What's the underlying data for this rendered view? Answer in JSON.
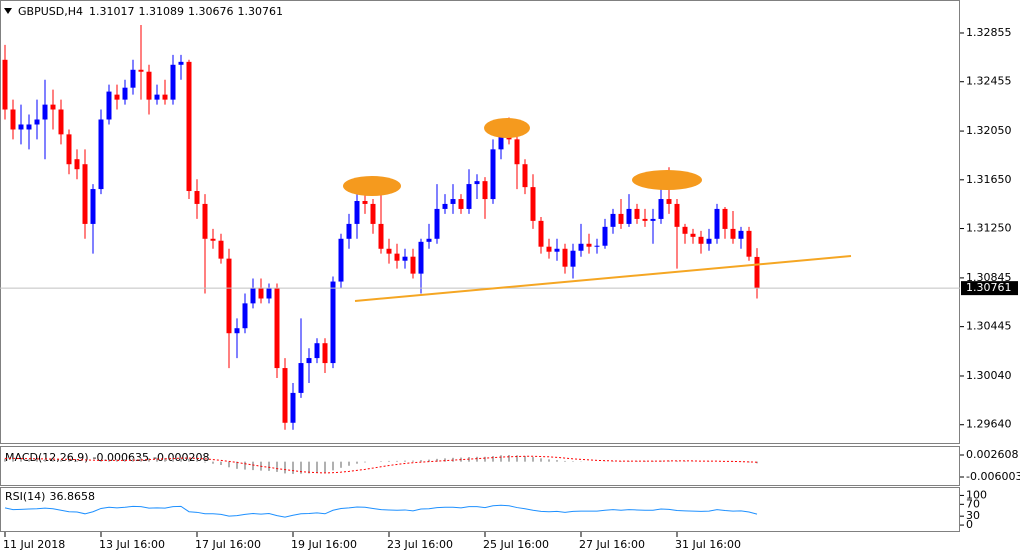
{
  "chart_data": [
    {
      "type": "candlestick",
      "title": "GBPUSD,H4",
      "categories": [
        "11 Jul 2018",
        null,
        null,
        null,
        null,
        null,
        null,
        null,
        null,
        null,
        null,
        null,
        "13 Jul 16:00",
        null,
        null,
        null,
        null,
        null,
        null,
        null,
        null,
        null,
        null,
        null,
        "17 Jul 16:00",
        null,
        null,
        null,
        null,
        null,
        null,
        null,
        null,
        null,
        null,
        null,
        "19 Jul 16:00",
        null,
        null,
        null,
        null,
        null,
        null,
        null,
        null,
        null,
        null,
        null,
        "23 Jul 16:00",
        null,
        null,
        null,
        null,
        null,
        null,
        null,
        null,
        null,
        null,
        null,
        "25 Jul 16:00",
        null,
        null,
        null,
        null,
        null,
        null,
        null,
        null,
        null,
        null,
        null,
        "27 Jul 16:00",
        null,
        null,
        null,
        null,
        null,
        null,
        null,
        null,
        null,
        null,
        null,
        "31 Jul 16:00",
        null,
        null,
        null,
        null,
        null,
        null,
        null,
        null,
        null,
        null
      ],
      "open": [
        1.32635,
        1.32227,
        1.32063,
        1.32063,
        1.32104,
        1.32145,
        1.32267,
        1.32227,
        1.32023,
        1.31819,
        1.31778,
        1.31288,
        1.31574,
        1.32145,
        1.32349,
        1.32308,
        1.32406,
        1.32553,
        1.32537,
        1.32308,
        1.32349,
        1.32308,
        1.32594,
        1.32618,
        1.31558,
        1.31452,
        1.31166,
        1.3115,
        1.31003,
        1.30391,
        1.30432,
        1.30636,
        1.30758,
        1.30676,
        1.30758,
        1.30105,
        1.29656,
        1.29901,
        1.30146,
        1.30187,
        1.30309,
        1.30146,
        1.30815,
        1.31166,
        1.31288,
        1.31476,
        1.31452,
        1.31288,
        1.31084,
        1.31044,
        1.30986,
        1.31019,
        1.3088,
        1.31141,
        1.31166,
        1.31411,
        1.31452,
        1.31492,
        1.31411,
        1.31615,
        1.31639,
        1.31492,
        1.319,
        1.32063,
        1.31982,
        1.31778,
        1.3159,
        1.31313,
        1.31101,
        1.3106,
        1.31084,
        1.30937,
        1.31068,
        1.31125,
        1.31101,
        1.31109,
        1.31264,
        1.3137,
        1.31288,
        1.31411,
        1.31329,
        1.31313,
        1.31329,
        1.31492,
        1.31452,
        1.31264,
        1.31207,
        1.31182,
        1.31125,
        1.31166,
        1.31411,
        1.31247,
        1.31166,
        1.31231,
        1.31017
      ],
      "high": [
        1.32757,
        1.32308,
        1.32267,
        1.32186,
        1.32308,
        1.32471,
        1.3239,
        1.32308,
        1.32063,
        1.319,
        1.319,
        1.31615,
        1.32227,
        1.32431,
        1.32431,
        1.32471,
        1.32635,
        1.3292,
        1.32594,
        1.32431,
        1.32471,
        1.32675,
        1.32675,
        1.32635,
        1.31655,
        1.31533,
        1.31247,
        1.31207,
        1.31084,
        1.30513,
        1.30717,
        1.3084,
        1.3084,
        1.30799,
        1.30799,
        1.30187,
        1.29982,
        1.30513,
        1.30268,
        1.3035,
        1.3035,
        1.30856,
        1.31207,
        1.3137,
        1.31533,
        1.31615,
        1.31492,
        1.31533,
        1.31166,
        1.31125,
        1.31084,
        1.31084,
        1.31166,
        1.31288,
        1.31615,
        1.31533,
        1.31615,
        1.31533,
        1.31737,
        1.31696,
        1.31672,
        1.31982,
        1.32145,
        1.32161,
        1.32023,
        1.31819,
        1.31696,
        1.31345,
        1.31166,
        1.31166,
        1.31125,
        1.31125,
        1.31288,
        1.31207,
        1.31166,
        1.31329,
        1.31411,
        1.31492,
        1.31533,
        1.31452,
        1.31411,
        1.31411,
        1.31639,
        1.31753,
        1.31492,
        1.31288,
        1.31247,
        1.31231,
        1.31247,
        1.31452,
        1.31427,
        1.31394,
        1.31264,
        1.31264,
        1.31089
      ],
      "low": [
        1.32145,
        1.31982,
        1.31941,
        1.319,
        1.31982,
        1.31819,
        1.32063,
        1.31941,
        1.31696,
        1.31655,
        1.31166,
        1.31044,
        1.31533,
        1.32104,
        1.32227,
        1.32267,
        1.32349,
        1.32308,
        1.32186,
        1.32267,
        1.32267,
        1.32267,
        1.32471,
        1.31492,
        1.31329,
        1.30717,
        1.31084,
        1.30962,
        1.30105,
        1.30187,
        1.30391,
        1.30595,
        1.30636,
        1.30636,
        1.30023,
        1.29599,
        1.29599,
        1.2986,
        1.29982,
        1.30146,
        1.30064,
        1.30105,
        1.30758,
        1.31084,
        1.31166,
        1.3137,
        1.31207,
        1.31044,
        1.30962,
        1.30921,
        1.30921,
        1.3084,
        1.30717,
        1.31084,
        1.31125,
        1.3137,
        1.3137,
        1.3137,
        1.3137,
        1.31492,
        1.31329,
        1.31452,
        1.31819,
        1.31941,
        1.31574,
        1.31533,
        1.31247,
        1.31044,
        1.31003,
        1.30986,
        1.3088,
        1.3084,
        1.31019,
        1.31044,
        1.31044,
        1.31084,
        1.31207,
        1.31247,
        1.31264,
        1.31288,
        1.31264,
        1.31125,
        1.31288,
        1.3137,
        1.30921,
        1.31125,
        1.31125,
        1.31044,
        1.31068,
        1.31125,
        1.31166,
        1.31125,
        1.31084,
        1.30986,
        1.30676
      ],
      "close": [
        1.32227,
        1.32063,
        1.32104,
        1.32104,
        1.32145,
        1.32267,
        1.32227,
        1.32023,
        1.31778,
        1.31737,
        1.31288,
        1.31574,
        1.32145,
        1.32374,
        1.32308,
        1.32406,
        1.32553,
        1.32537,
        1.32308,
        1.32349,
        1.32308,
        1.32594,
        1.32618,
        1.31558,
        1.31452,
        1.31166,
        1.3115,
        1.31003,
        1.30391,
        1.30432,
        1.30636,
        1.30758,
        1.30676,
        1.30758,
        1.30105,
        1.29656,
        1.29901,
        1.30146,
        1.30187,
        1.30309,
        1.30146,
        1.30815,
        1.31166,
        1.31288,
        1.31476,
        1.31452,
        1.31288,
        1.31084,
        1.31044,
        1.30986,
        1.31019,
        1.3088,
        1.31141,
        1.31166,
        1.31411,
        1.31452,
        1.31492,
        1.31411,
        1.31615,
        1.31639,
        1.31492,
        1.319,
        1.32063,
        1.31982,
        1.31778,
        1.3159,
        1.31313,
        1.31101,
        1.3106,
        1.31084,
        1.30937,
        1.31068,
        1.31125,
        1.31101,
        1.31109,
        1.31264,
        1.3137,
        1.31288,
        1.31411,
        1.31329,
        1.31313,
        1.31329,
        1.31492,
        1.31452,
        1.31264,
        1.31207,
        1.31182,
        1.31125,
        1.31166,
        1.31411,
        1.31247,
        1.31166,
        1.31231,
        1.31019,
        1.30761
      ],
      "up_color": "#0000ff",
      "down_color": "#ff0000",
      "ylim": [
        1.2949,
        1.3306
      ],
      "yticks": [
        1.32855,
        1.32455,
        {
          "value": 1.3205,
          "label": "1.32050"
        },
        {
          "value": 1.3165,
          "label": "1.31650"
        },
        {
          "value": 1.3125,
          "label": "1.31250"
        },
        1.30845,
        1.30445,
        {
          "value": 1.3004,
          "label": "1.30040"
        },
        {
          "value": 1.2964,
          "label": "1.29640"
        }
      ],
      "grid": false
    },
    {
      "type": "macd",
      "title": "MACD(12,26,9)",
      "series": [
        {
          "color": "#b0b0b0",
          "values": [
            0.0012,
            0.0011,
            0.001,
            0.0009,
            0.0009,
            0.0009,
            0.0008,
            0.0007,
            0.0005,
            0.0003,
            0.0,
            0.0,
            0.0003,
            0.0006,
            0.0008,
            0.001,
            0.0013,
            0.0014,
            0.0014,
            0.0014,
            0.0014,
            0.0015,
            0.0016,
            0.0011,
            0.0005,
            -0.0003,
            -0.0008,
            -0.0013,
            -0.0022,
            -0.0028,
            -0.0031,
            -0.0033,
            -0.0035,
            -0.0036,
            -0.004,
            -0.0046,
            -0.0048,
            -0.0047,
            -0.0046,
            -0.0044,
            -0.0042,
            -0.0034,
            -0.0024,
            -0.0016,
            -0.0008,
            -0.0003,
            0.0,
            0.0002,
            0.0003,
            0.0003,
            0.0004,
            0.0004,
            0.0006,
            0.0008,
            0.0011,
            0.0013,
            0.0015,
            0.0016,
            0.0018,
            0.0019,
            0.0019,
            0.0022,
            0.0025,
            0.0026,
            0.0025,
            0.0022,
            0.0018,
            0.0013,
            0.0009,
            0.0006,
            0.0003,
            0.0002,
            0.0001,
            0.0,
            0.0,
            0.0001,
            0.0002,
            0.0002,
            0.0003,
            0.0003,
            0.0003,
            0.0003,
            0.0004,
            0.0004,
            0.0003,
            0.0002,
            0.0001,
            0.0,
            -0.0001,
            0.0,
            0.0,
            -0.0001,
            -0.0001,
            -0.0003,
            -0.000635
          ]
        },
        {
          "color": "#ff0000",
          "values": [
            0.0013,
            0.0013,
            0.0012,
            0.0012,
            0.0011,
            0.0011,
            0.001,
            0.001,
            0.0009,
            0.0008,
            0.0007,
            0.0006,
            0.0005,
            0.0005,
            0.0005,
            0.0005,
            0.0006,
            0.0007,
            0.0008,
            0.001,
            0.0011,
            0.0012,
            0.0014,
            0.0014,
            0.0013,
            0.0011,
            0.0008,
            0.0005,
            0.0001,
            -0.0003,
            -0.0008,
            -0.0013,
            -0.0018,
            -0.0022,
            -0.0027,
            -0.0031,
            -0.0035,
            -0.0039,
            -0.0041,
            -0.0043,
            -0.0044,
            -0.0043,
            -0.0041,
            -0.0038,
            -0.0034,
            -0.003,
            -0.0025,
            -0.002,
            -0.0015,
            -0.0011,
            -0.0007,
            -0.0004,
            -0.0002,
            0.0,
            0.0002,
            0.0004,
            0.0006,
            0.0008,
            0.001,
            0.0012,
            0.0014,
            0.0016,
            0.0018,
            0.0019,
            0.002,
            0.0021,
            0.0021,
            0.002,
            0.0019,
            0.0017,
            0.0014,
            0.0011,
            0.0009,
            0.0007,
            0.0005,
            0.0004,
            0.0003,
            0.0002,
            0.0002,
            0.0002,
            0.0002,
            0.0002,
            0.0002,
            0.0003,
            0.0003,
            0.0003,
            0.0003,
            0.0002,
            0.0002,
            0.0002,
            0.0001,
            0.0001,
            0.0,
            -0.0001,
            -0.000208
          ]
        }
      ],
      "ylim": [
        -0.00913,
        0.00574
      ],
      "yticks": [
        0.002608,
        -0.006003
      ]
    },
    {
      "type": "line",
      "title": "RSI(14)",
      "series": [
        {
          "color": "#1e90ff",
          "values": [
            58,
            52,
            53,
            54,
            55,
            57,
            55,
            50,
            45,
            44,
            38,
            45,
            56,
            60,
            58,
            60,
            63,
            62,
            57,
            58,
            57,
            62,
            63,
            45,
            43,
            38,
            38,
            36,
            30,
            32,
            36,
            39,
            37,
            39,
            32,
            27,
            33,
            38,
            39,
            41,
            38,
            50,
            56,
            58,
            61,
            60,
            56,
            52,
            51,
            50,
            51,
            48,
            54,
            55,
            59,
            60,
            60,
            58,
            62,
            62,
            59,
            65,
            67,
            65,
            59,
            55,
            50,
            46,
            45,
            46,
            43,
            46,
            47,
            47,
            47,
            50,
            52,
            50,
            52,
            51,
            50,
            50,
            54,
            53,
            49,
            48,
            47,
            46,
            47,
            52,
            49,
            47,
            48,
            44,
            36.8658
          ]
        }
      ],
      "ylim": [
        -20,
        125
      ],
      "yticks": [
        100,
        70,
        30,
        0
      ]
    }
  ]
}
